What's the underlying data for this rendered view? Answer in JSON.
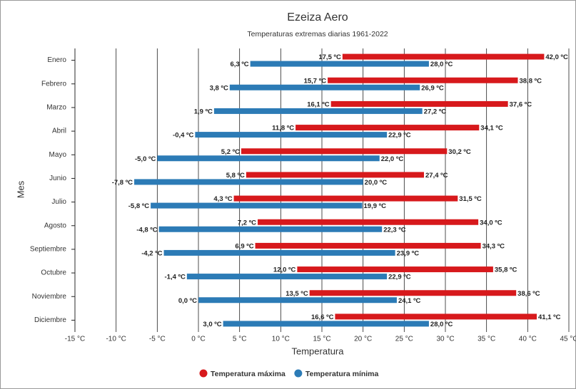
{
  "chart_data": {
    "type": "floating-bar",
    "title": "Ezeiza Aero",
    "subtitle": "Temperaturas extremas diarias 1961-2022",
    "x_label": "Temperatura",
    "y_label": "Mes",
    "categories": [
      "Enero",
      "Febrero",
      "Marzo",
      "Abril",
      "Mayo",
      "Junio",
      "Julio",
      "Agosto",
      "Septiembre",
      "Octubre",
      "Noviembre",
      "Diciembre"
    ],
    "series": [
      {
        "name": "Temperatura máxima",
        "color": "#d7191c",
        "values": [
          [
            17.5,
            42.0
          ],
          [
            15.7,
            38.8
          ],
          [
            16.1,
            37.6
          ],
          [
            11.8,
            34.1
          ],
          [
            5.2,
            30.2
          ],
          [
            5.8,
            27.4
          ],
          [
            4.3,
            31.5
          ],
          [
            7.2,
            34.0
          ],
          [
            6.9,
            34.3
          ],
          [
            12.0,
            35.8
          ],
          [
            13.5,
            38.6
          ],
          [
            16.6,
            41.1
          ]
        ],
        "value_labels": [
          [
            "17,5 ºC",
            "42,0 ºC"
          ],
          [
            "15,7 ºC",
            "38,8 ºC"
          ],
          [
            "16,1 ºC",
            "37,6 ºC"
          ],
          [
            "11,8 ºC",
            "34,1 ºC"
          ],
          [
            "5,2 ºC",
            "30,2 ºC"
          ],
          [
            "5,8 ºC",
            "27,4 ºC"
          ],
          [
            "4,3 ºC",
            "31,5 ºC"
          ],
          [
            "7,2 ºC",
            "34,0 ºC"
          ],
          [
            "6,9 ºC",
            "34,3 ºC"
          ],
          [
            "12,0 ºC",
            "35,8 ºC"
          ],
          [
            "13,5 ºC",
            "38,6 ºC"
          ],
          [
            "16,6 ºC",
            "41,1 ºC"
          ]
        ]
      },
      {
        "name": "Temperatura mínima",
        "color": "#2c7bb6",
        "values": [
          [
            6.3,
            28.0
          ],
          [
            3.8,
            26.9
          ],
          [
            1.9,
            27.2
          ],
          [
            -0.4,
            22.9
          ],
          [
            -5.0,
            22.0
          ],
          [
            -7.8,
            20.0
          ],
          [
            -5.8,
            19.9
          ],
          [
            -4.8,
            22.3
          ],
          [
            -4.2,
            23.9
          ],
          [
            -1.4,
            22.9
          ],
          [
            0.0,
            24.1
          ],
          [
            3.0,
            28.0
          ]
        ],
        "value_labels": [
          [
            "6,3 ºC",
            "28,0 ºC"
          ],
          [
            "3,8 ºC",
            "26,9 ºC"
          ],
          [
            "1,9 ºC",
            "27,2 ºC"
          ],
          [
            "-0,4 ºC",
            "22,9 ºC"
          ],
          [
            "-5,0 ºC",
            "22,0 ºC"
          ],
          [
            "-7,8 ºC",
            "20,0 ºC"
          ],
          [
            "-5,8 ºC",
            "19,9 ºC"
          ],
          [
            "-4,8 ºC",
            "22,3 ºC"
          ],
          [
            "-4,2 ºC",
            "23,9 ºC"
          ],
          [
            "-1,4 ºC",
            "22,9 ºC"
          ],
          [
            "0,0 ºC",
            "24,1 ºC"
          ],
          [
            "3,0 ºC",
            "28,0 ºC"
          ]
        ]
      }
    ],
    "xlim": [
      -15,
      45
    ],
    "xticks": [
      {
        "value": -15,
        "label": "-15 °C"
      },
      {
        "value": -10,
        "label": "-10 °C"
      },
      {
        "value": -5,
        "label": "-5 °C"
      },
      {
        "value": 0,
        "label": "0 °C"
      },
      {
        "value": 5,
        "label": "5 °C"
      },
      {
        "value": 10,
        "label": "10 °C"
      },
      {
        "value": 15,
        "label": "15 °C"
      },
      {
        "value": 20,
        "label": "20 °C"
      },
      {
        "value": 25,
        "label": "25 °C"
      },
      {
        "value": 30,
        "label": "30 °C"
      },
      {
        "value": 35,
        "label": "35 °C"
      },
      {
        "value": 40,
        "label": "40 °C"
      },
      {
        "value": 45,
        "label": "45 °C"
      }
    ],
    "grid": true,
    "legend": "bottom"
  }
}
